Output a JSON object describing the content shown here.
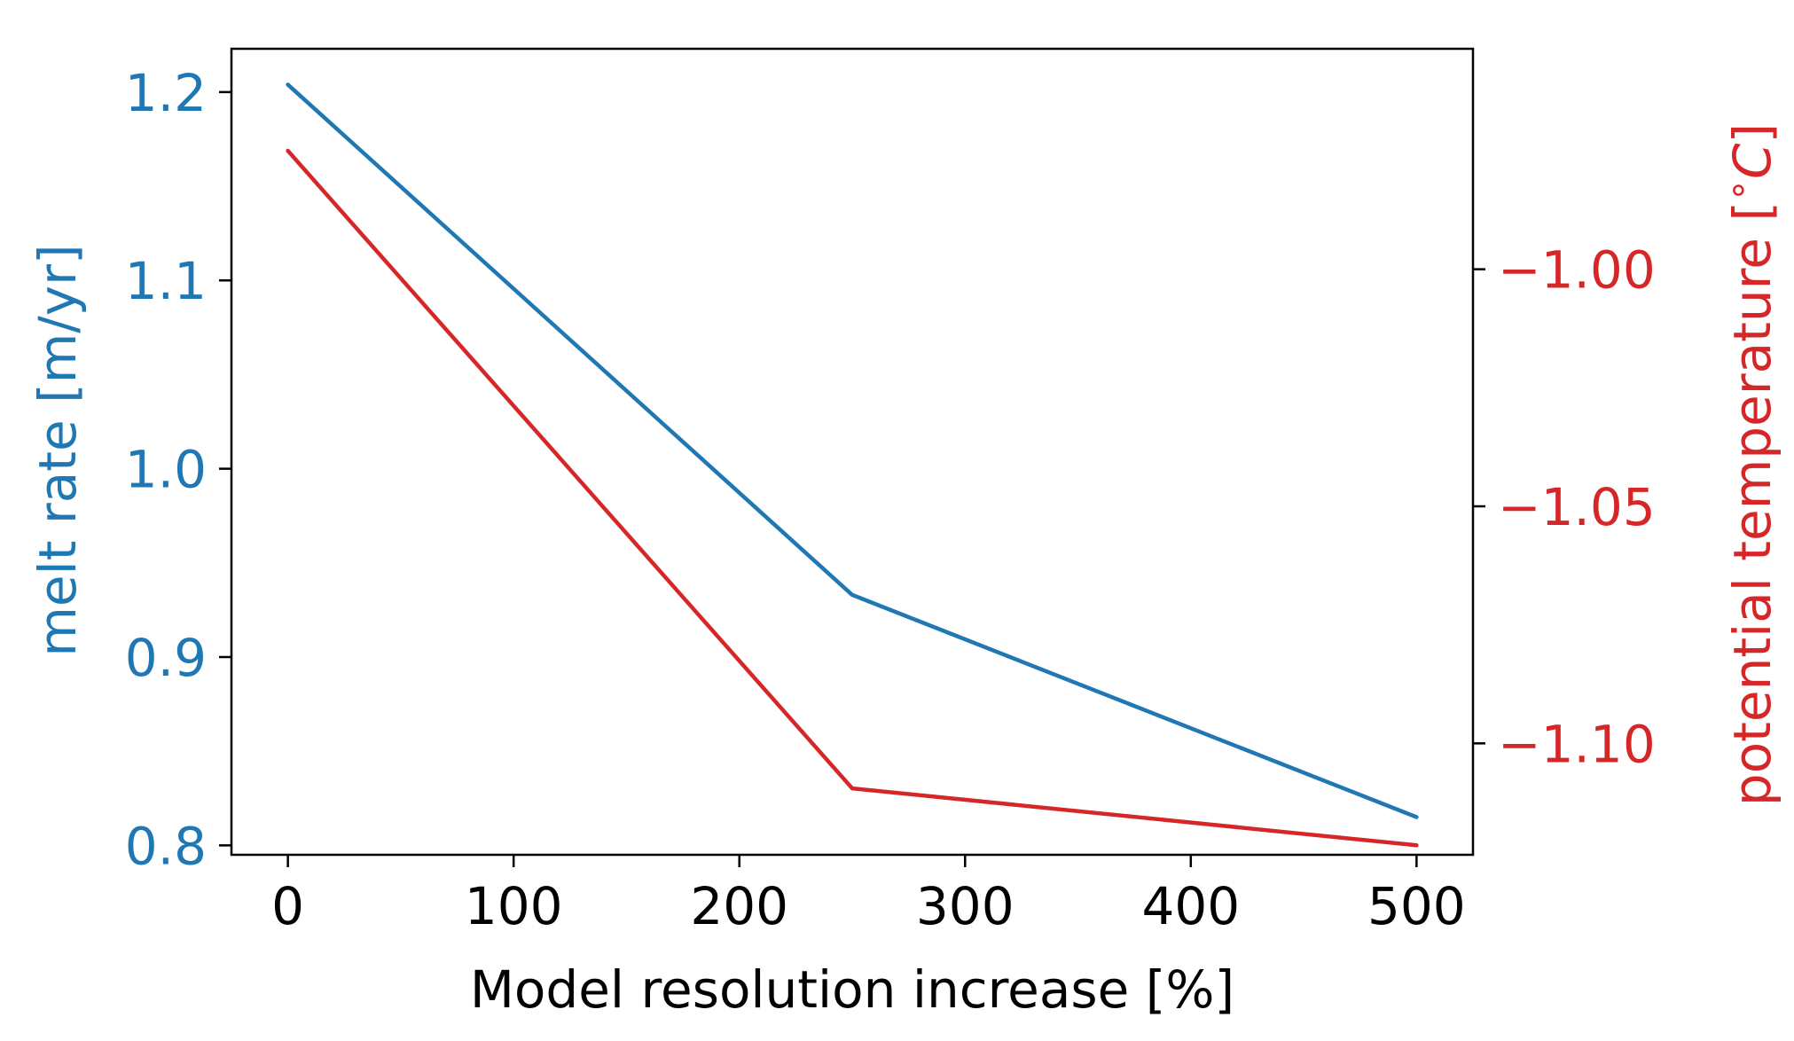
{
  "chart_data": {
    "type": "line",
    "xlabel": "Model resolution increase [%]",
    "ylabel_left": "melt rate [m/yr]",
    "ylabel_right": "potential temperature [",
    "ylabel_right_degree": "∘",
    "ylabel_right_unit": "C",
    "ylabel_right_close": "]",
    "xlim": [
      -25,
      525
    ],
    "ylim_left": [
      0.795,
      1.223
    ],
    "ylim_right": [
      -1.1235,
      -0.9535
    ],
    "x_ticks": [
      0,
      100,
      200,
      300,
      400,
      500
    ],
    "x_tick_labels": [
      "0",
      "100",
      "200",
      "300",
      "400",
      "500"
    ],
    "y_left_ticks": [
      0.8,
      0.9,
      1.0,
      1.1,
      1.2
    ],
    "y_left_tick_labels": [
      "0.8",
      "0.9",
      "1.0",
      "1.1",
      "1.2"
    ],
    "y_right_ticks": [
      -1.0,
      -1.05,
      -1.1
    ],
    "y_right_tick_labels": [
      "−1.00",
      "−1.05",
      "−1.10"
    ],
    "grid": false,
    "series": [
      {
        "axis": "left",
        "color": "#1f77b4",
        "x": [
          0,
          250,
          500
        ],
        "y": [
          1.204,
          0.933,
          0.815
        ]
      },
      {
        "axis": "right",
        "color": "#d62728",
        "x": [
          0,
          250,
          500
        ],
        "y": [
          -0.975,
          -1.1095,
          -1.1215
        ]
      }
    ]
  }
}
